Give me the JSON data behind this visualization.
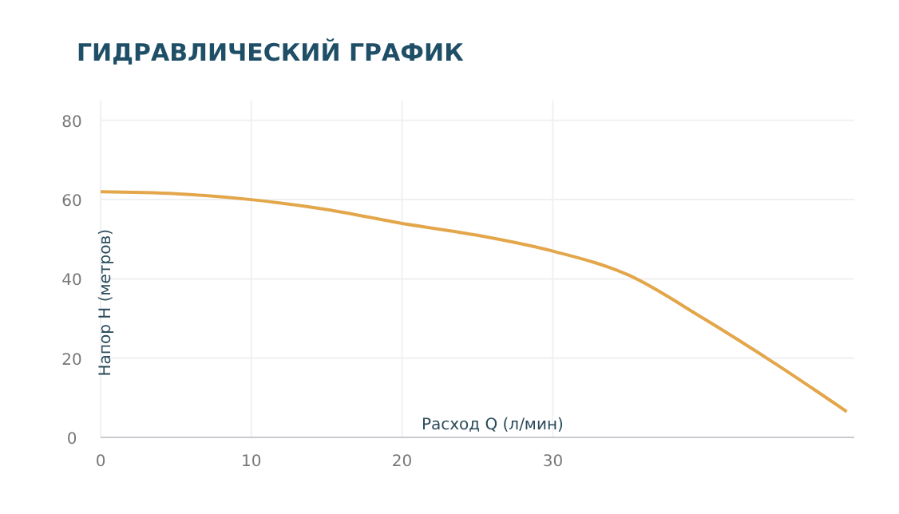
{
  "chart_data": {
    "type": "line",
    "title": "ГИДРАВЛИЧЕСКИЙ ГРАФИК",
    "xlabel": "Расход Q (л/мин)",
    "ylabel": "Напор H (метров)",
    "x": [
      0,
      5,
      10,
      15,
      20,
      25,
      30,
      35,
      40,
      45,
      49.5
    ],
    "series": [
      {
        "color": "#e3a64a",
        "values": [
          62,
          61.5,
          60,
          57.5,
          54,
          51,
          47,
          41,
          30,
          18,
          6.5
        ]
      }
    ],
    "xlim": [
      0,
      50
    ],
    "ylim": [
      0,
      85
    ],
    "xticks": [
      0,
      10,
      20,
      30
    ],
    "yticks": [
      0,
      20,
      40,
      60,
      80
    ],
    "grid": true,
    "marker": "none"
  }
}
